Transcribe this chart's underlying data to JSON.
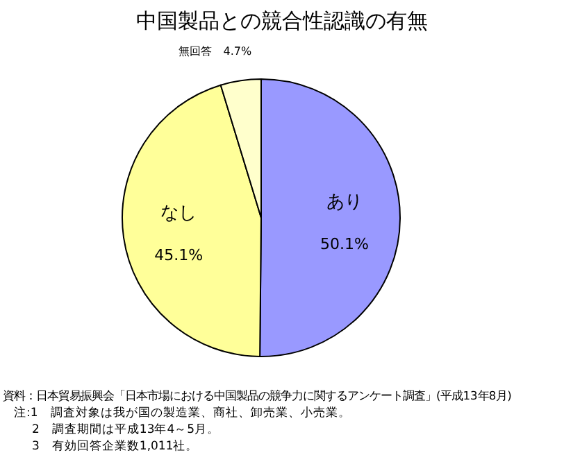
{
  "chart_data": {
    "type": "pie",
    "title": "中国製品との競合性認識の有無",
    "categories": [
      "あり",
      "なし",
      "無回答"
    ],
    "values": [
      50.1,
      45.1,
      4.7
    ],
    "colors": [
      "#9999ff",
      "#ffff99",
      "#ffffcc"
    ],
    "value_labels": [
      "50.1%",
      "45.1%",
      "4.7%"
    ],
    "annotations": [
      "資料：日本貿易振興会「日本市場における中国製品の競争力に関するアンケート調査」(平成13年8月)",
      "注:1　調査対象は我が国の製造業、商社、卸売業、小売業。",
      "2　調査期間は平成13年4～5月。",
      "3　有効回答企業数1,011社。"
    ]
  }
}
